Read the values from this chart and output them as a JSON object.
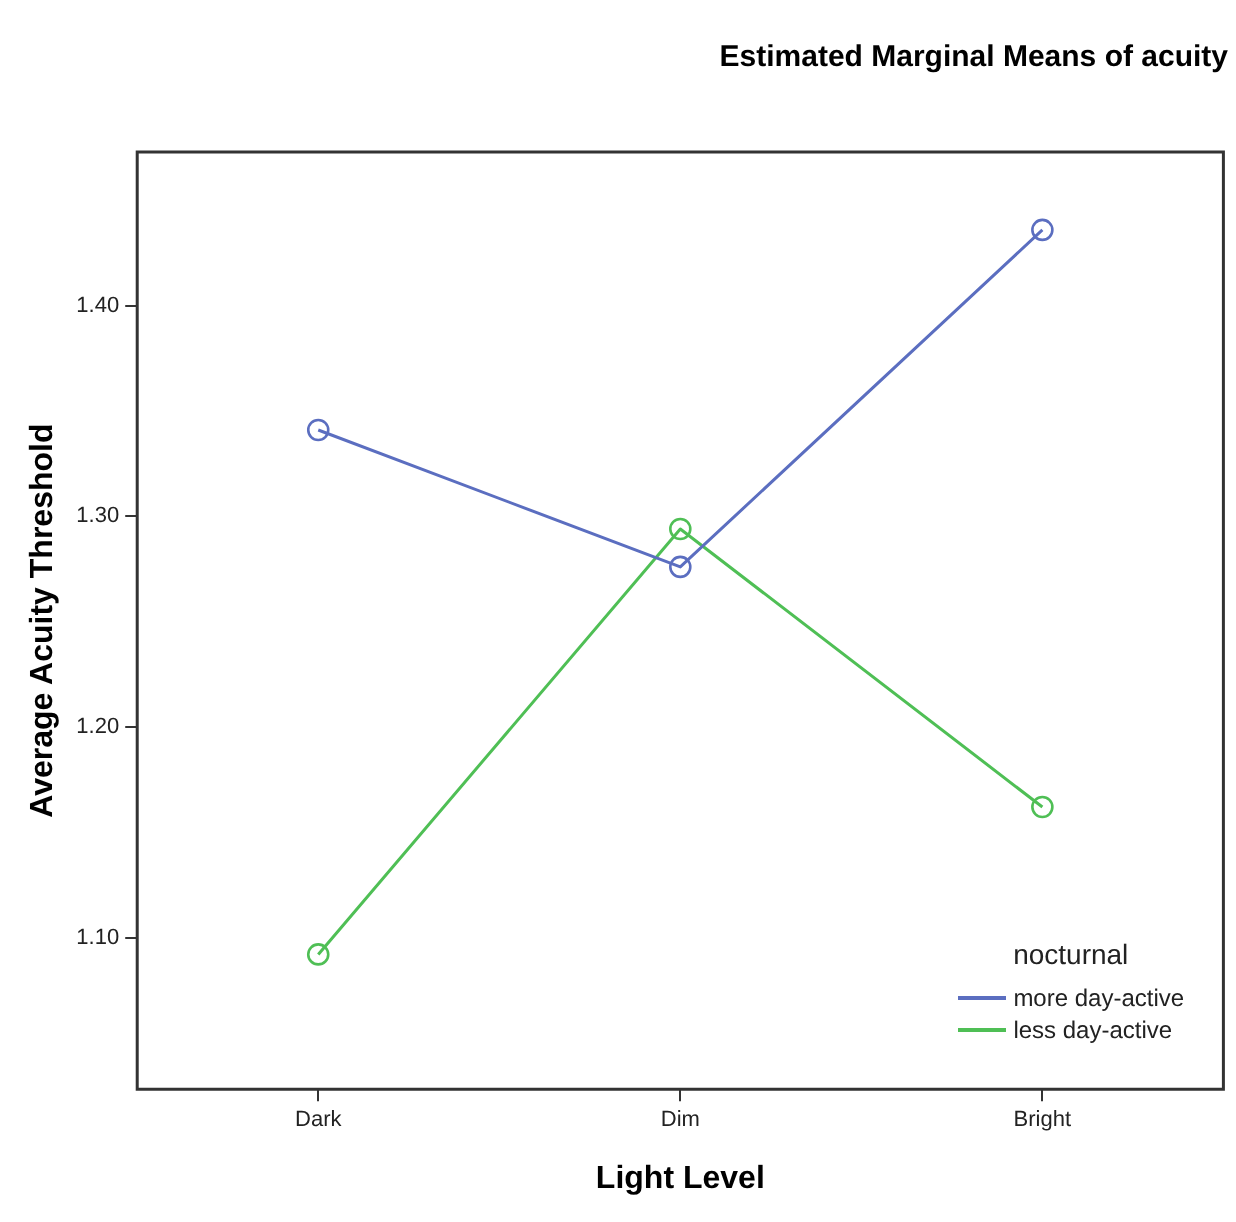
{
  "chart_data": {
    "type": "line",
    "title": "Estimated Marginal Means of acuity",
    "xlabel": "Light Level",
    "ylabel": "Average Acuity Threshold",
    "legend_title": "nocturnal",
    "categories": [
      "Dark",
      "Dim",
      "Bright"
    ],
    "series": [
      {
        "name": "more day-active",
        "color": "#5b6ec0",
        "values": [
          1.341,
          1.276,
          1.436
        ]
      },
      {
        "name": "less day-active",
        "color": "#4fbf55",
        "values": [
          1.092,
          1.294,
          1.162
        ]
      }
    ],
    "ylim": [
      1.028,
      1.473
    ],
    "yticks": [
      {
        "value": 1.1,
        "label": "1.10"
      },
      {
        "value": 1.2,
        "label": "1.20"
      },
      {
        "value": 1.3,
        "label": "1.30"
      },
      {
        "value": 1.4,
        "label": "1.40"
      }
    ],
    "grid": false,
    "legend": "bottom right",
    "marker": "circle",
    "line_style": "solid"
  }
}
